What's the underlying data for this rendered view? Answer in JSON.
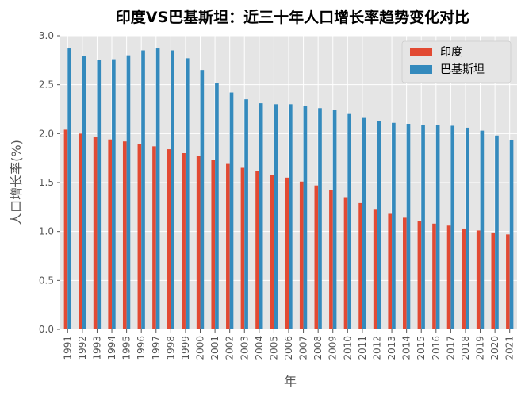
{
  "chart_data": {
    "type": "bar",
    "title": "印度VS巴基斯坦：近三十年人口增长率趋势变化对比",
    "xlabel": "年",
    "ylabel": "人口增长率(%)",
    "ylim": [
      0,
      3.0
    ],
    "yticks": [
      "0.0",
      "0.5",
      "1.0",
      "1.5",
      "2.0",
      "2.5",
      "3.0"
    ],
    "grid": true,
    "legend_position": "top-right",
    "categories": [
      "1991",
      "1992",
      "1993",
      "1994",
      "1995",
      "1996",
      "1997",
      "1998",
      "1999",
      "2000",
      "2001",
      "2002",
      "2003",
      "2004",
      "2005",
      "2006",
      "2007",
      "2008",
      "2009",
      "2010",
      "2011",
      "2012",
      "2013",
      "2014",
      "2015",
      "2016",
      "2017",
      "2018",
      "2019",
      "2020",
      "2021"
    ],
    "series": [
      {
        "name": "印度",
        "color": "#E24A33",
        "values": [
          2.04,
          2.0,
          1.97,
          1.94,
          1.92,
          1.89,
          1.87,
          1.84,
          1.8,
          1.77,
          1.73,
          1.69,
          1.65,
          1.62,
          1.58,
          1.55,
          1.51,
          1.47,
          1.42,
          1.35,
          1.29,
          1.23,
          1.18,
          1.14,
          1.11,
          1.08,
          1.06,
          1.03,
          1.01,
          0.99,
          0.97
        ]
      },
      {
        "name": "巴基斯坦",
        "color": "#348ABD",
        "values": [
          2.87,
          2.79,
          2.75,
          2.76,
          2.8,
          2.85,
          2.87,
          2.85,
          2.77,
          2.65,
          2.52,
          2.42,
          2.35,
          2.31,
          2.3,
          2.3,
          2.28,
          2.26,
          2.24,
          2.2,
          2.16,
          2.13,
          2.11,
          2.1,
          2.09,
          2.09,
          2.08,
          2.06,
          2.03,
          1.98,
          1.93
        ]
      }
    ]
  }
}
